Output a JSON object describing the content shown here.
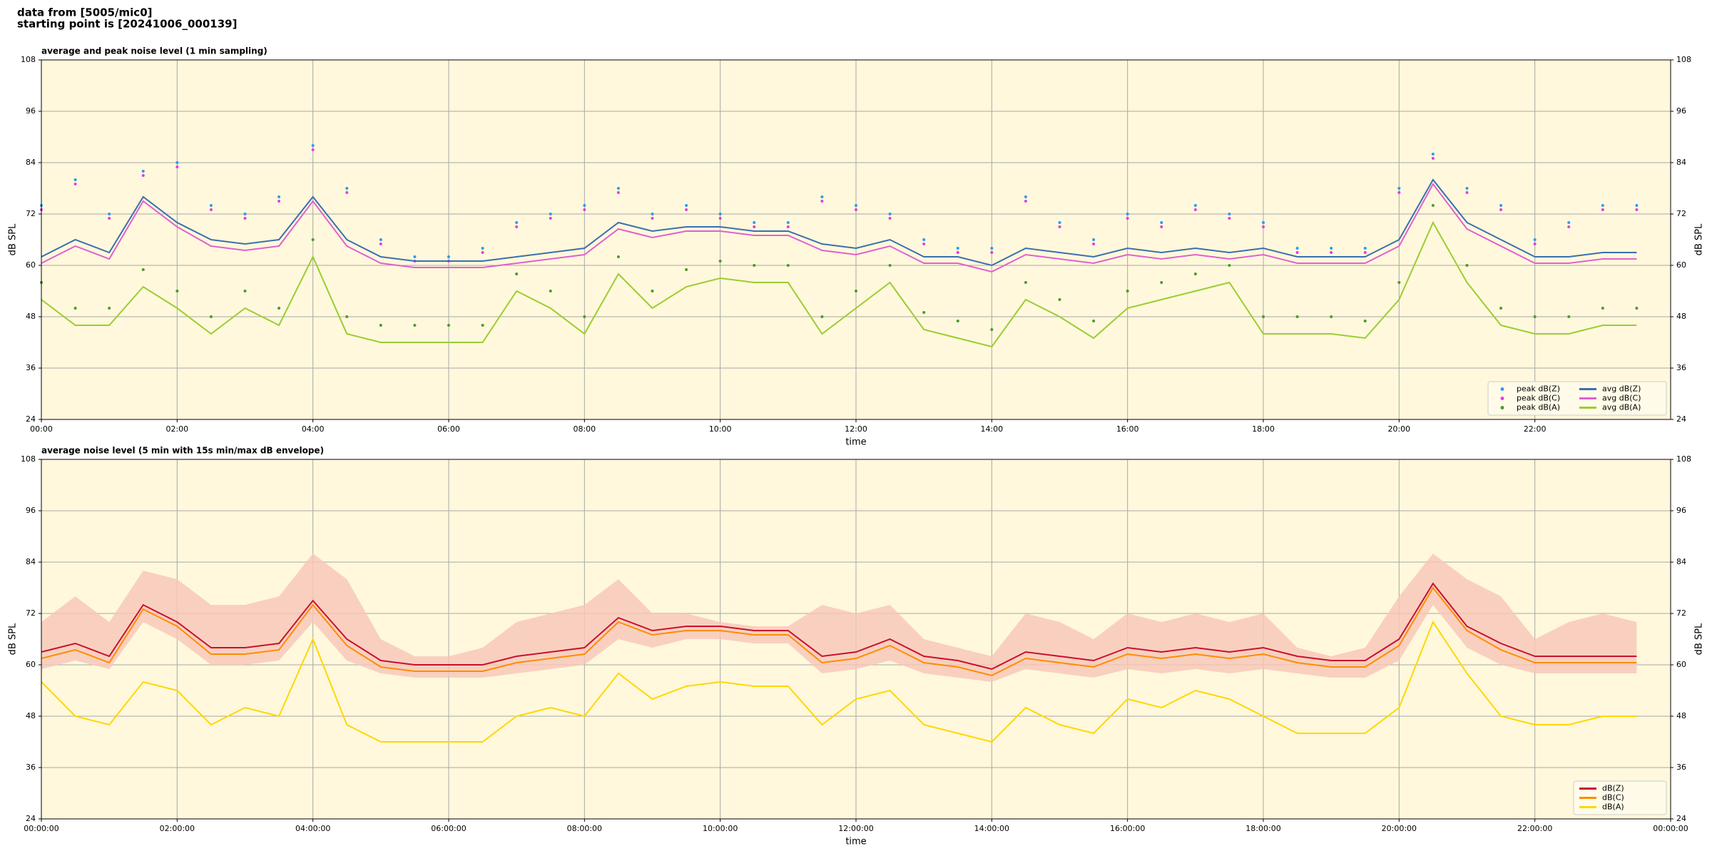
{
  "header": {
    "line1": "data from [5005/mic0]",
    "line2": "starting point is [20241006_000139]"
  },
  "chart_data": [
    {
      "type": "line",
      "title": "average and peak noise level (1 min sampling)",
      "xlabel": "time",
      "ylabel": "dB SPL",
      "xlim": [
        0,
        24
      ],
      "ylim": [
        24,
        108
      ],
      "yticks": [
        24,
        36,
        48,
        60,
        72,
        84,
        96,
        108
      ],
      "xticks": [
        {
          "value": 0,
          "label": "00:00"
        },
        {
          "value": 2,
          "label": "02:00"
        },
        {
          "value": 4,
          "label": "04:00"
        },
        {
          "value": 6,
          "label": "06:00"
        },
        {
          "value": 8,
          "label": "08:00"
        },
        {
          "value": 10,
          "label": "10:00"
        },
        {
          "value": 12,
          "label": "12:00"
        },
        {
          "value": 14,
          "label": "14:00"
        },
        {
          "value": 16,
          "label": "16:00"
        },
        {
          "value": 18,
          "label": "18:00"
        },
        {
          "value": 20,
          "label": "20:00"
        },
        {
          "value": 22,
          "label": "22:00"
        }
      ],
      "grid": true,
      "legend": "lower right",
      "legend_columns": 2,
      "background": "#fff8dc",
      "x": [
        0,
        0.5,
        1,
        1.5,
        2,
        2.5,
        3,
        3.5,
        4,
        4.5,
        5,
        5.5,
        6,
        6.5,
        7,
        7.5,
        8,
        8.5,
        9,
        9.5,
        10,
        10.5,
        11,
        11.5,
        12,
        12.5,
        13,
        13.5,
        14,
        14.5,
        15,
        15.5,
        16,
        16.5,
        17,
        17.5,
        18,
        18.5,
        19,
        19.5,
        20,
        20.5,
        21,
        21.5,
        22,
        22.5,
        23,
        23.5
      ],
      "series": [
        {
          "name": "peak dB(Z)",
          "style": "points",
          "color": "#2a9df4",
          "values": [
            74,
            80,
            72,
            82,
            84,
            74,
            72,
            76,
            88,
            78,
            66,
            62,
            62,
            64,
            70,
            72,
            74,
            78,
            72,
            74,
            72,
            70,
            70,
            76,
            74,
            72,
            66,
            64,
            64,
            76,
            70,
            66,
            72,
            70,
            74,
            72,
            70,
            64,
            64,
            64,
            78,
            86,
            78,
            74,
            66,
            70,
            74,
            74
          ]
        },
        {
          "name": "peak dB(C)",
          "style": "points",
          "color": "#e040e0",
          "values": [
            73,
            79,
            71,
            81,
            83,
            73,
            71,
            75,
            87,
            77,
            65,
            61,
            61,
            63,
            69,
            71,
            73,
            77,
            71,
            73,
            71,
            69,
            69,
            75,
            73,
            71,
            65,
            63,
            63,
            75,
            69,
            65,
            71,
            69,
            73,
            71,
            69,
            63,
            63,
            63,
            77,
            85,
            77,
            73,
            65,
            69,
            73,
            73
          ]
        },
        {
          "name": "peak dB(A)",
          "style": "points",
          "color": "#4a9a30",
          "values": [
            56,
            50,
            50,
            59,
            54,
            48,
            54,
            50,
            66,
            48,
            46,
            46,
            46,
            46,
            58,
            54,
            48,
            62,
            54,
            59,
            61,
            60,
            60,
            48,
            54,
            60,
            49,
            47,
            45,
            56,
            52,
            47,
            54,
            56,
            58,
            60,
            48,
            48,
            48,
            47,
            56,
            74,
            60,
            50,
            48,
            48,
            50,
            50
          ]
        },
        {
          "name": "avg dB(Z)",
          "style": "line",
          "color": "#3a6fb0",
          "values": [
            62,
            66,
            63,
            76,
            70,
            66,
            65,
            66,
            76,
            66,
            62,
            61,
            61,
            61,
            62,
            63,
            64,
            70,
            68,
            69,
            69,
            68,
            68,
            65,
            64,
            66,
            62,
            62,
            60,
            64,
            63,
            62,
            64,
            63,
            64,
            63,
            64,
            62,
            62,
            62,
            66,
            80,
            70,
            66,
            62,
            62,
            63,
            63
          ]
        },
        {
          "name": "avg dB(C)",
          "style": "line",
          "color": "#e060d0",
          "values": [
            60.5,
            64.5,
            61.5,
            75,
            69,
            64.5,
            63.5,
            64.5,
            75,
            64.5,
            60.5,
            59.5,
            59.5,
            59.5,
            60.5,
            61.5,
            62.5,
            68.5,
            66.5,
            68,
            68,
            67,
            67,
            63.5,
            62.5,
            64.5,
            60.5,
            60.5,
            58.5,
            62.5,
            61.5,
            60.5,
            62.5,
            61.5,
            62.5,
            61.5,
            62.5,
            60.5,
            60.5,
            60.5,
            64.5,
            79,
            68.5,
            64.5,
            60.5,
            60.5,
            61.5,
            61.5
          ]
        },
        {
          "name": "avg dB(A)",
          "style": "line",
          "color": "#9acd32",
          "values": [
            52,
            46,
            46,
            55,
            50,
            44,
            50,
            46,
            62,
            44,
            42,
            42,
            42,
            42,
            54,
            50,
            44,
            58,
            50,
            55,
            57,
            56,
            56,
            44,
            50,
            56,
            45,
            43,
            41,
            52,
            48,
            43,
            50,
            52,
            54,
            56,
            44,
            44,
            44,
            43,
            52,
            70,
            56,
            46,
            44,
            44,
            46,
            46
          ]
        }
      ]
    },
    {
      "type": "line",
      "title": "average noise level (5 min with 15s min/max dB envelope)",
      "xlabel": "time",
      "ylabel": "dB SPL",
      "xlim": [
        0,
        24
      ],
      "ylim": [
        24,
        108
      ],
      "yticks": [
        24,
        36,
        48,
        60,
        72,
        84,
        96,
        108
      ],
      "xticks": [
        {
          "value": 0,
          "label": "00:00:00"
        },
        {
          "value": 2,
          "label": "02:00:00"
        },
        {
          "value": 4,
          "label": "04:00:00"
        },
        {
          "value": 6,
          "label": "06:00:00"
        },
        {
          "value": 8,
          "label": "08:00:00"
        },
        {
          "value": 10,
          "label": "10:00:00"
        },
        {
          "value": 12,
          "label": "12:00:00"
        },
        {
          "value": 14,
          "label": "14:00:00"
        },
        {
          "value": 16,
          "label": "16:00:00"
        },
        {
          "value": 18,
          "label": "18:00:00"
        },
        {
          "value": 20,
          "label": "20:00:00"
        },
        {
          "value": 22,
          "label": "22:00:00"
        },
        {
          "value": 24,
          "label": "00:00:00"
        }
      ],
      "grid": true,
      "legend": "lower right",
      "legend_columns": 1,
      "background": "#fff8dc",
      "x": [
        0,
        0.5,
        1,
        1.5,
        2,
        2.5,
        3,
        3.5,
        4,
        4.5,
        5,
        5.5,
        6,
        6.5,
        7,
        7.5,
        8,
        8.5,
        9,
        9.5,
        10,
        10.5,
        11,
        11.5,
        12,
        12.5,
        13,
        13.5,
        14,
        14.5,
        15,
        15.5,
        16,
        16.5,
        17,
        17.5,
        18,
        18.5,
        19,
        19.5,
        20,
        20.5,
        21,
        21.5,
        22,
        22.5,
        23,
        23.5
      ],
      "envelope": {
        "color": "#f7c6b8",
        "upper": [
          70,
          76,
          70,
          82,
          80,
          74,
          74,
          76,
          86,
          80,
          66,
          62,
          62,
          64,
          70,
          72,
          74,
          80,
          72,
          72,
          70,
          69,
          69,
          74,
          72,
          74,
          66,
          64,
          62,
          72,
          70,
          66,
          72,
          70,
          72,
          70,
          72,
          64,
          62,
          64,
          76,
          86,
          80,
          76,
          66,
          70,
          72,
          70
        ],
        "lower": [
          59,
          61,
          59,
          70,
          66,
          60,
          60,
          61,
          70,
          61,
          58,
          57,
          57,
          57,
          58,
          59,
          60,
          66,
          64,
          66,
          66,
          65,
          65,
          58,
          59,
          61,
          58,
          57,
          56,
          59,
          58,
          57,
          59,
          58,
          59,
          58,
          59,
          58,
          57,
          57,
          61,
          74,
          64,
          60,
          58,
          58,
          58,
          58
        ]
      },
      "series": [
        {
          "name": "dB(Z)",
          "style": "line",
          "color": "#c8102e",
          "values": [
            63,
            65,
            62,
            74,
            70,
            64,
            64,
            65,
            75,
            66,
            61,
            60,
            60,
            60,
            62,
            63,
            64,
            71,
            68,
            69,
            69,
            68,
            68,
            62,
            63,
            66,
            62,
            61,
            59,
            63,
            62,
            61,
            64,
            63,
            64,
            63,
            64,
            62,
            61,
            61,
            66,
            79,
            69,
            65,
            62,
            62,
            62,
            62
          ]
        },
        {
          "name": "dB(C)",
          "style": "line",
          "color": "#ff8c00",
          "values": [
            61.5,
            63.5,
            60.5,
            73,
            69,
            62.5,
            62.5,
            63.5,
            74,
            64.5,
            59.5,
            58.5,
            58.5,
            58.5,
            60.5,
            61.5,
            62.5,
            70,
            67,
            68,
            68,
            67,
            67,
            60.5,
            61.5,
            64.5,
            60.5,
            59.5,
            57.5,
            61.5,
            60.5,
            59.5,
            62.5,
            61.5,
            62.5,
            61.5,
            62.5,
            60.5,
            59.5,
            59.5,
            64.5,
            78,
            68,
            63.5,
            60.5,
            60.5,
            60.5,
            60.5
          ]
        },
        {
          "name": "dB(A)",
          "style": "line",
          "color": "#ffd700",
          "values": [
            56,
            48,
            46,
            56,
            54,
            46,
            50,
            48,
            66,
            46,
            42,
            42,
            42,
            42,
            48,
            50,
            48,
            58,
            52,
            55,
            56,
            55,
            55,
            46,
            52,
            54,
            46,
            44,
            42,
            50,
            46,
            44,
            52,
            50,
            54,
            52,
            48,
            44,
            44,
            44,
            50,
            70,
            58,
            48,
            46,
            46,
            48,
            48
          ]
        }
      ]
    }
  ]
}
